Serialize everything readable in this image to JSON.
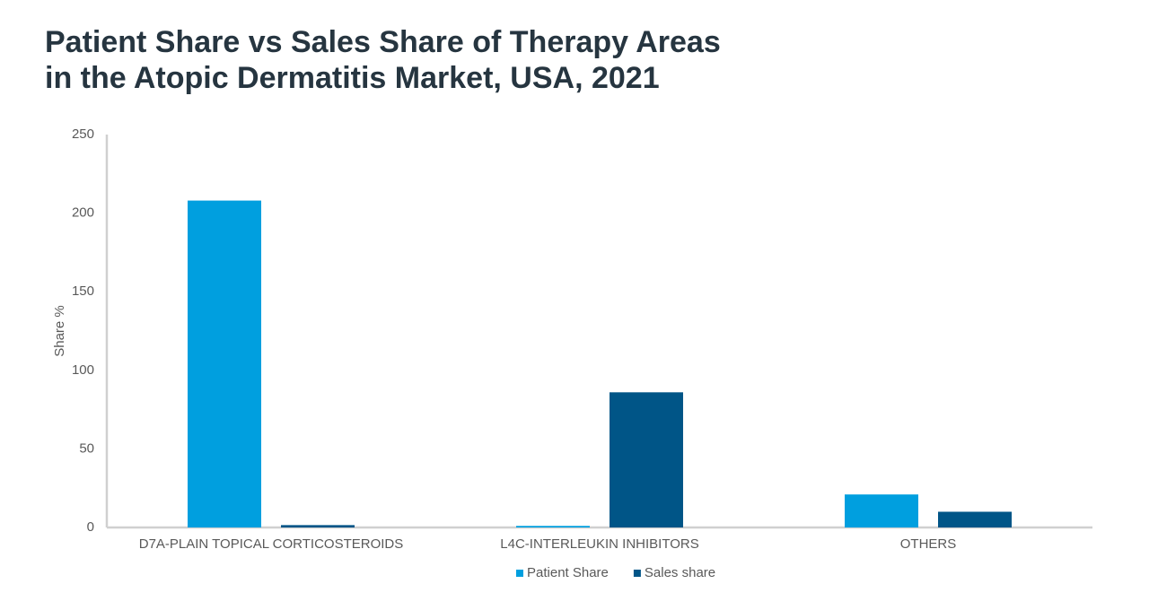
{
  "chart_data": {
    "type": "bar",
    "title_lines": [
      "Patient Share vs Sales Share of Therapy Areas",
      "in the Atopic Dermatitis Market, USA, 2021"
    ],
    "y_label": "Share %",
    "categories": [
      "D7A-PLAIN TOPICAL CORTICOSTEROIDS",
      "L4C-INTERLEUKIN INHIBITORS",
      "OTHERS"
    ],
    "series": [
      {
        "name": "Patient Share",
        "color": "#009fdf",
        "values": [
          208,
          1,
          21
        ]
      },
      {
        "name": "Sales share",
        "color": "#005587",
        "values": [
          1.5,
          86,
          10
        ]
      }
    ],
    "ylim": [
      0,
      250
    ],
    "yticks": [
      0,
      50,
      100,
      150,
      200,
      250
    ],
    "grid": false,
    "legend": "bottom"
  }
}
